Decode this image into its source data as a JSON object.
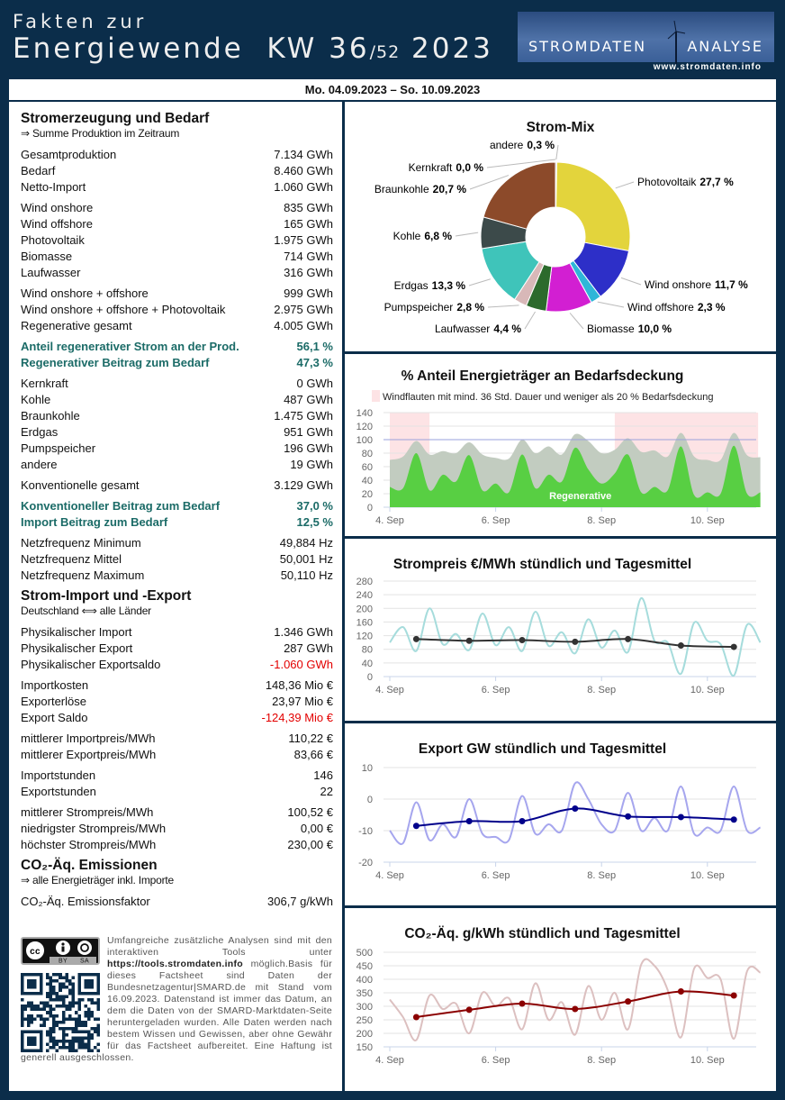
{
  "header": {
    "line1": "Fakten zur",
    "line2": "Energiewende  KW 36",
    "week_total": "/52",
    "year": " 2023",
    "logo_left": "STROMDATEN",
    "logo_right": "ANALYSE",
    "logo_url": "www.stromdaten.info",
    "date_range": "Mo. 04.09.2023 – So. 10.09.2023"
  },
  "left": {
    "sections": [
      {
        "title": "Stromerzeugung und Bedarf",
        "subtitle": "⇒ Summe Produktion im Zeitraum",
        "groups": [
          [
            [
              "Gesamtproduktion",
              "7.134 GWh"
            ],
            [
              "Bedarf",
              "8.460 GWh"
            ],
            [
              "Netto-Import",
              "1.060 GWh"
            ]
          ],
          [
            [
              "Wind onshore",
              "835 GWh"
            ],
            [
              "Wind offshore",
              "165 GWh"
            ],
            [
              "Photovoltaik",
              "1.975 GWh"
            ],
            [
              "Biomasse",
              "714 GWh"
            ],
            [
              "Laufwasser",
              "316 GWh"
            ]
          ],
          [
            [
              "Wind onshore + offshore",
              "999 GWh"
            ],
            [
              "Wind onshore + offshore + Photovoltaik",
              "2.975 GWh"
            ],
            [
              "Regenerative gesamt",
              "4.005 GWh"
            ]
          ],
          [
            [
              "Anteil regenerativer Strom an der Prod.",
              "56,1 %",
              "hl"
            ],
            [
              "Regenerativer Beitrag zum Bedarf",
              "47,3 %",
              "hl"
            ]
          ],
          [
            [
              "Kernkraft",
              "0 GWh"
            ],
            [
              "Kohle",
              "487 GWh"
            ],
            [
              "Braunkohle",
              "1.475 GWh"
            ],
            [
              "Erdgas",
              "951 GWh"
            ],
            [
              "Pumpspeicher",
              "196 GWh"
            ],
            [
              "andere",
              "19 GWh"
            ]
          ],
          [
            [
              "Konventionelle gesamt",
              "3.129 GWh"
            ]
          ],
          [
            [
              "Konventioneller Beitrag zum Bedarf",
              "37,0 %",
              "hl"
            ],
            [
              "Import Beitrag zum Bedarf",
              "12,5 %",
              "hl"
            ]
          ],
          [
            [
              "Netzfrequenz Minimum",
              "49,884 Hz"
            ],
            [
              "Netzfrequenz Mittel",
              "50,001 Hz"
            ],
            [
              "Netzfrequenz Maximum",
              "50,110 Hz"
            ]
          ]
        ]
      },
      {
        "title": "Strom-Import und -Export",
        "subtitle": "Deutschland ⟺ alle Länder",
        "groups": [
          [
            [
              "Physikalischer Import",
              "1.346 GWh"
            ],
            [
              "Physikalischer Export",
              "287 GWh"
            ],
            [
              "Physikalischer Exportsaldo",
              "-1.060 GWh",
              "neg"
            ]
          ],
          [
            [
              "Importkosten",
              "148,36 Mio €"
            ],
            [
              "Exporterlöse",
              "23,97 Mio €"
            ],
            [
              "Export Saldo",
              "-124,39 Mio €",
              "neg"
            ]
          ],
          [
            [
              "mittlerer Importpreis/MWh",
              "110,22 €"
            ],
            [
              "mittlerer Exportpreis/MWh",
              "83,66 €"
            ]
          ],
          [
            [
              "Importstunden",
              "146"
            ],
            [
              "Exportstunden",
              "22"
            ]
          ],
          [
            [
              "mittlerer Strompreis/MWh",
              "100,52 €"
            ],
            [
              "niedrigster Strompreis/MWh",
              "0,00 €"
            ],
            [
              "höchster Strompreis/MWh",
              "230,00 €"
            ]
          ]
        ]
      },
      {
        "title": "CO₂-Äq. Emissionen",
        "subtitle": "⇒ alle Energieträger inkl. Importe",
        "groups": [
          [
            [
              "CO₂-Äq. Emissionsfaktor",
              "306,7 g/kWh"
            ]
          ]
        ]
      }
    ],
    "footer": {
      "text1": "Umfangreiche zusätzliche Analysen sind mit den interaktiven Tools unter ",
      "link": "https://tools.stromdaten.info",
      "text1b": " möglich.",
      "text2": "Basis für dieses Factsheet sind Daten der Bundesnetzagentur|SMARD.de mit Stand vom 16.09.2023. Datenstand ist immer das Datum, an dem die Daten von der SMARD-Marktdaten-Seite heruntergeladen wurden. Alle Daten werden nach bestem Wissen und Gewissen, aber ohne Gewähr für das Factsheet aufbereitet. Eine Haftung ist generell ausgeschlossen.",
      "cc_by": "BY",
      "cc_sa": "SA",
      "cc": "cc"
    }
  },
  "chart_data": [
    {
      "type": "pie",
      "title": "Strom-Mix",
      "slices": [
        {
          "label": "andere",
          "value": 0.3,
          "text": "0,3 %",
          "color": "#c8c8c8"
        },
        {
          "label": "Photovoltaik",
          "value": 27.7,
          "text": "27,7 %",
          "color": "#e3d43c"
        },
        {
          "label": "Wind onshore",
          "value": 11.7,
          "text": "11,7 %",
          "color": "#2d2fc8"
        },
        {
          "label": "Wind offshore",
          "value": 2.3,
          "text": "2,3 %",
          "color": "#2fb6d8"
        },
        {
          "label": "Biomasse",
          "value": 10.0,
          "text": "10,0 %",
          "color": "#d21fd2"
        },
        {
          "label": "Laufwasser",
          "value": 4.4,
          "text": "4,4 %",
          "color": "#2c6a2c"
        },
        {
          "label": "Pumpspeicher",
          "value": 2.8,
          "text": "2,8 %",
          "color": "#d8b8b8"
        },
        {
          "label": "Erdgas",
          "value": 13.3,
          "text": "13,3 %",
          "color": "#3fc4ba"
        },
        {
          "label": "Kohle",
          "value": 6.8,
          "text": "6,8 %",
          "color": "#3c4a4a"
        },
        {
          "label": "Braunkohle",
          "value": 20.7,
          "text": "20,7 %",
          "color": "#8c4a2a"
        },
        {
          "label": "Kernkraft",
          "value": 0.0,
          "text": "0,0 %",
          "color": "#ff6600"
        }
      ]
    },
    {
      "type": "area",
      "title": "% Anteil Energieträger an Bedarfsdeckung",
      "legend": "Windflauten mit mind. 36 Std. Dauer und weniger als 20 % Bedarfsdeckung",
      "ylim": [
        0,
        140
      ],
      "yticks": [
        0,
        20,
        40,
        60,
        80,
        100,
        120,
        140
      ],
      "xticks": [
        "4. Sep",
        "6. Sep",
        "8. Sep",
        "10. Sep"
      ],
      "step_hours": 6,
      "reference_line": 100,
      "bands": [
        [
          "2023-09-04 00:00",
          "2023-09-04 18:00"
        ],
        [
          "2023-09-08 06:00",
          "2023-09-10 23:00"
        ]
      ],
      "series": [
        {
          "values": [
            70,
            75,
            98,
            78,
            83,
            80,
            96,
            78,
            73,
            72,
            100,
            80,
            90,
            78,
            108,
            98,
            80,
            85,
            102,
            82,
            84,
            75,
            110,
            75,
            70,
            70,
            110,
            77,
            74
          ],
          "color": "#c2ccc0"
        },
        {
          "name": "Regenerative",
          "values": [
            30,
            28,
            80,
            25,
            48,
            38,
            77,
            25,
            35,
            22,
            78,
            28,
            48,
            38,
            88,
            56,
            35,
            50,
            78,
            22,
            30,
            25,
            90,
            18,
            22,
            20,
            91,
            20,
            22
          ],
          "color": "#58cf43"
        }
      ]
    },
    {
      "type": "line",
      "title": "Strompreis €/MWh stündlich und Tagesmittel",
      "ylim": [
        0,
        280
      ],
      "yticks": [
        0,
        40,
        80,
        120,
        160,
        200,
        240,
        280
      ],
      "xticks": [
        "4. Sep",
        "6. Sep",
        "8. Sep",
        "10. Sep"
      ],
      "step_hours": 6,
      "hourly": {
        "values": [
          100,
          145,
          75,
          200,
          95,
          125,
          78,
          185,
          92,
          145,
          75,
          190,
          90,
          130,
          68,
          168,
          85,
          135,
          72,
          230,
          105,
          100,
          8,
          158,
          105,
          95,
          3,
          152,
          100
        ],
        "color": "#a6dcdc"
      },
      "daily_mean": {
        "values": [
          110,
          105,
          107,
          102,
          110,
          91,
          87
        ],
        "color": "#333333"
      }
    },
    {
      "type": "line",
      "title": "Export GW stündlich und Tagesmittel",
      "ylim": [
        -20,
        10
      ],
      "yticks": [
        -20,
        -10,
        0,
        10
      ],
      "xticks": [
        "4. Sep",
        "6. Sep",
        "8. Sep",
        "10. Sep"
      ],
      "step_hours": 6,
      "hourly": {
        "values": [
          -10,
          -14,
          -1,
          -13,
          -8,
          -12,
          0,
          -11,
          -12,
          -13,
          1,
          -11,
          -8,
          -10,
          5,
          0,
          -8,
          -10,
          2,
          -10,
          -6,
          -10,
          4,
          -11,
          -9,
          -10,
          4,
          -10,
          -9
        ],
        "color": "#a6a6ee"
      },
      "daily_mean": {
        "values": [
          -8.5,
          -7,
          -7,
          -3,
          -5.5,
          -5.7,
          -6.5
        ],
        "color": "#00008b"
      }
    },
    {
      "type": "line",
      "title": "CO₂-Äq. g/kWh stündlich und Tagesmittel",
      "ylim": [
        150,
        500
      ],
      "yticks": [
        150,
        200,
        250,
        300,
        350,
        400,
        450,
        500
      ],
      "xticks": [
        "4. Sep",
        "6. Sep",
        "8. Sep",
        "10. Sep"
      ],
      "step_hours": 6,
      "hourly": {
        "values": [
          325,
          260,
          175,
          340,
          290,
          310,
          200,
          350,
          300,
          330,
          215,
          385,
          250,
          315,
          195,
          375,
          250,
          350,
          215,
          455,
          450,
          360,
          185,
          440,
          405,
          400,
          180,
          430,
          425
        ],
        "color": "#dcc0c0"
      },
      "daily_mean": {
        "values": [
          260,
          287,
          310,
          290,
          318,
          355,
          340
        ],
        "color": "#8b0000"
      }
    }
  ]
}
